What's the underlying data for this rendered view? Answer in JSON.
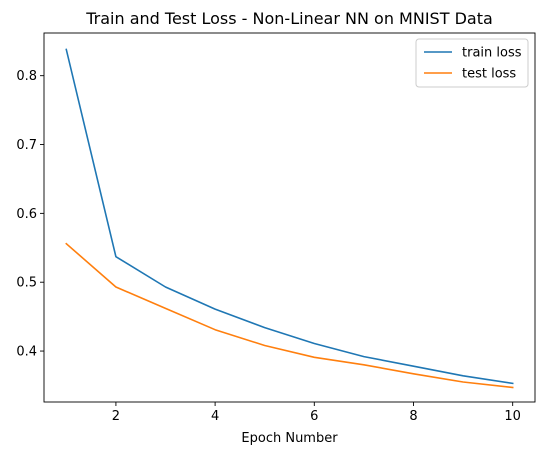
{
  "chart_data": {
    "type": "line",
    "title": "Train and Test Loss - Non-Linear NN on MNIST Data",
    "xlabel": "Epoch Number",
    "ylabel": "",
    "x": [
      1,
      2,
      3,
      4,
      5,
      6,
      7,
      8,
      9,
      10
    ],
    "xlim": [
      0.55,
      10.45
    ],
    "ylim": [
      0.326,
      0.862
    ],
    "xticks": [
      2,
      4,
      6,
      8,
      10
    ],
    "yticks": [
      0.4,
      0.5,
      0.6,
      0.7,
      0.8
    ],
    "grid": false,
    "legend_position": "top-right",
    "series": [
      {
        "name": "train loss",
        "color": "#1f77b4",
        "values": [
          0.838,
          0.537,
          0.493,
          0.461,
          0.434,
          0.411,
          0.392,
          0.378,
          0.364,
          0.353
        ]
      },
      {
        "name": "test loss",
        "color": "#ff7f0e",
        "values": [
          0.556,
          0.493,
          0.462,
          0.431,
          0.408,
          0.391,
          0.38,
          0.367,
          0.355,
          0.347
        ]
      }
    ]
  }
}
